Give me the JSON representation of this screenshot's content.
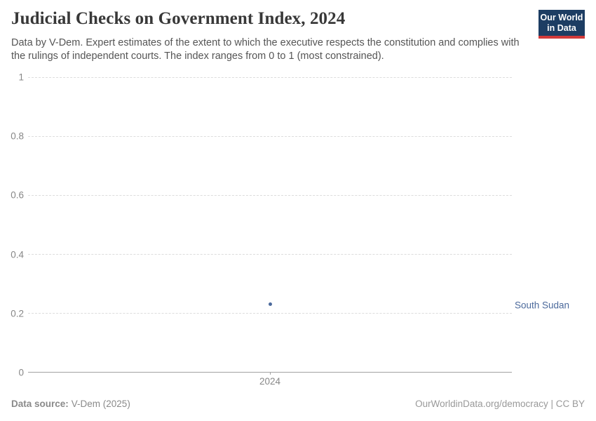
{
  "header": {
    "title": "Judicial Checks on Government Index, 2024",
    "subtitle": "Data by V-Dem. Expert estimates of the extent to which the executive respects the constitution and complies with the rulings of independent courts. The index ranges from 0 to 1 (most constrained).",
    "logo": {
      "line1": "Our World",
      "line2": "in Data"
    }
  },
  "chart_data": {
    "type": "scatter",
    "title": "Judicial Checks on Government Index, 2024",
    "x": [
      2024
    ],
    "series": [
      {
        "name": "South Sudan",
        "values": [
          0.23
        ],
        "color": "#4c6a9c"
      }
    ],
    "xlabel": "",
    "ylabel": "",
    "ylim": [
      0,
      1
    ],
    "yticks": [
      "0",
      "0.2",
      "0.4",
      "0.6",
      "0.8",
      "1"
    ],
    "xticks": [
      "2024"
    ],
    "grid": "horizontal-dashed",
    "legend": "entity label to the right of plot"
  },
  "axes": {
    "y_labels": [
      "1",
      "0.8",
      "0.6",
      "0.4",
      "0.2",
      "0"
    ],
    "x_label": "2024"
  },
  "entity_label": "South Sudan",
  "footer": {
    "source_label": "Data source:",
    "source_value": "V-Dem (2025)",
    "credit": "OurWorldinData.org/democracy | CC BY"
  },
  "colors": {
    "accent_blue": "#4c6a9c",
    "logo_bg": "#1d3d63",
    "logo_stripe": "#d23a3a",
    "grid": "#dcdcdc",
    "axis": "#a1a1a1",
    "tick_text": "#878787",
    "title_text": "#383838",
    "subtitle_text": "#555555"
  }
}
